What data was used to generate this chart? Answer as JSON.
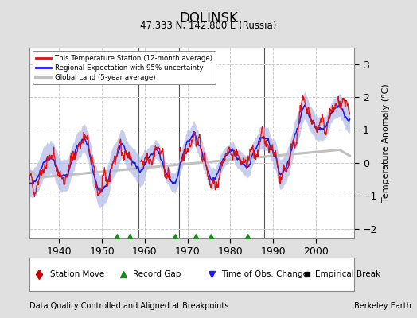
{
  "title": "DOLINSK",
  "subtitle": "47.333 N, 142.800 E (Russia)",
  "ylabel": "Temperature Anomaly (°C)",
  "footer_left": "Data Quality Controlled and Aligned at Breakpoints",
  "footer_right": "Berkeley Earth",
  "xlim": [
    1933,
    2009
  ],
  "ylim": [
    -2.3,
    3.5
  ],
  "yticks": [
    -2,
    -1,
    0,
    1,
    2,
    3
  ],
  "xticks": [
    1940,
    1950,
    1960,
    1970,
    1980,
    1990,
    2000
  ],
  "bg_color": "#e0e0e0",
  "plot_bg_color": "#ffffff",
  "vertical_lines": [
    1958.5,
    1968.0,
    1988.0
  ],
  "record_gap_years": [
    1953.5,
    1956.5,
    1967.0,
    1972.0,
    1975.5,
    1984.0
  ],
  "legend_labels": [
    "This Temperature Station (12-month average)",
    "Regional Expectation with 95% uncertainty",
    "Global Land (5-year average)"
  ]
}
